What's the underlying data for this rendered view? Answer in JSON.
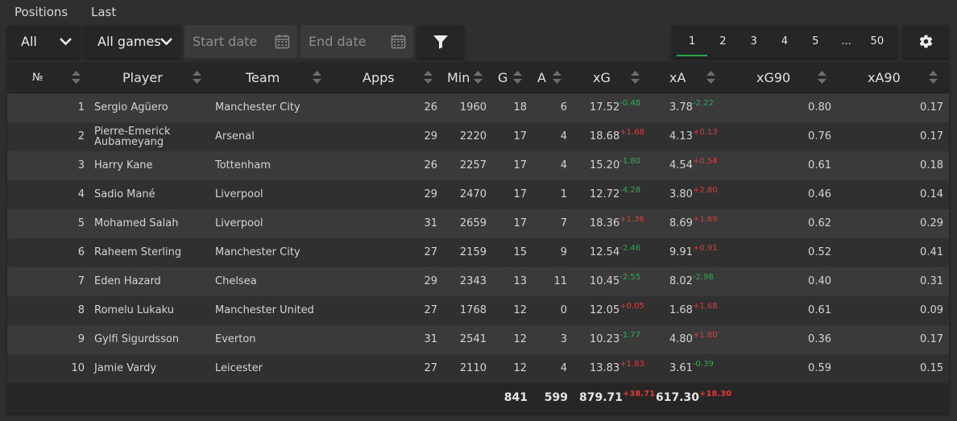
{
  "nav": {
    "positions": "Positions",
    "last": "Last"
  },
  "filters": {
    "position_select": "All",
    "games_select": "All games",
    "start_date_placeholder": "Start date",
    "end_date_placeholder": "End date"
  },
  "pager": {
    "pages": [
      "1",
      "2",
      "3",
      "4",
      "5",
      "...",
      "50"
    ],
    "active": "1"
  },
  "colors": {
    "accent": "#26a848",
    "positive": "#e03b3b",
    "negative": "#34a853"
  },
  "table": {
    "headers": {
      "no": "№",
      "player": "Player",
      "team": "Team",
      "apps": "Apps",
      "min": "Min",
      "g": "G",
      "a": "A",
      "xg": "xG",
      "xa": "xA",
      "xg90": "xG90",
      "xa90": "xA90"
    },
    "rows": [
      {
        "no": "1",
        "player": "Sergio Agüero",
        "team": "Manchester City",
        "apps": "26",
        "min": "1960",
        "g": "18",
        "a": "6",
        "xg": "17.52",
        "xg_d": "-0.48",
        "xa": "3.78",
        "xa_d": "-2.22",
        "xg90": "0.80",
        "xa90": "0.17"
      },
      {
        "no": "2",
        "player": "Pierre-Emerick Aubameyang",
        "team": "Arsenal",
        "apps": "29",
        "min": "2220",
        "g": "17",
        "a": "4",
        "xg": "18.68",
        "xg_d": "+1.68",
        "xa": "4.13",
        "xa_d": "+0.13",
        "xg90": "0.76",
        "xa90": "0.17"
      },
      {
        "no": "3",
        "player": "Harry Kane",
        "team": "Tottenham",
        "apps": "26",
        "min": "2257",
        "g": "17",
        "a": "4",
        "xg": "15.20",
        "xg_d": "-1.80",
        "xa": "4.54",
        "xa_d": "+0.54",
        "xg90": "0.61",
        "xa90": "0.18"
      },
      {
        "no": "4",
        "player": "Sadio Mané",
        "team": "Liverpool",
        "apps": "29",
        "min": "2470",
        "g": "17",
        "a": "1",
        "xg": "12.72",
        "xg_d": "-4.28",
        "xa": "3.80",
        "xa_d": "+2.80",
        "xg90": "0.46",
        "xa90": "0.14"
      },
      {
        "no": "5",
        "player": "Mohamed Salah",
        "team": "Liverpool",
        "apps": "31",
        "min": "2659",
        "g": "17",
        "a": "7",
        "xg": "18.36",
        "xg_d": "+1.36",
        "xa": "8.69",
        "xa_d": "+1.69",
        "xg90": "0.62",
        "xa90": "0.29"
      },
      {
        "no": "6",
        "player": "Raheem Sterling",
        "team": "Manchester City",
        "apps": "27",
        "min": "2159",
        "g": "15",
        "a": "9",
        "xg": "12.54",
        "xg_d": "-2.46",
        "xa": "9.91",
        "xa_d": "+0.91",
        "xg90": "0.52",
        "xa90": "0.41"
      },
      {
        "no": "7",
        "player": "Eden Hazard",
        "team": "Chelsea",
        "apps": "29",
        "min": "2343",
        "g": "13",
        "a": "11",
        "xg": "10.45",
        "xg_d": "-2.55",
        "xa": "8.02",
        "xa_d": "-2.98",
        "xg90": "0.40",
        "xa90": "0.31"
      },
      {
        "no": "8",
        "player": "Romelu Lukaku",
        "team": "Manchester United",
        "apps": "27",
        "min": "1768",
        "g": "12",
        "a": "0",
        "xg": "12.05",
        "xg_d": "+0.05",
        "xa": "1.68",
        "xa_d": "+1.68",
        "xg90": "0.61",
        "xa90": "0.09"
      },
      {
        "no": "9",
        "player": "Gylfi Sigurdsson",
        "team": "Everton",
        "apps": "31",
        "min": "2541",
        "g": "12",
        "a": "3",
        "xg": "10.23",
        "xg_d": "-1.77",
        "xa": "4.80",
        "xa_d": "+1.80",
        "xg90": "0.36",
        "xa90": "0.17"
      },
      {
        "no": "10",
        "player": "Jamie Vardy",
        "team": "Leicester",
        "apps": "27",
        "min": "2110",
        "g": "12",
        "a": "4",
        "xg": "13.83",
        "xg_d": "+1.83",
        "xa": "3.61",
        "xa_d": "-0.39",
        "xg90": "0.59",
        "xa90": "0.15"
      }
    ],
    "totals": {
      "g": "841",
      "a": "599",
      "xg": "879.71",
      "xg_d": "+38.71",
      "xa": "617.30",
      "xa_d": "+18.30"
    }
  }
}
